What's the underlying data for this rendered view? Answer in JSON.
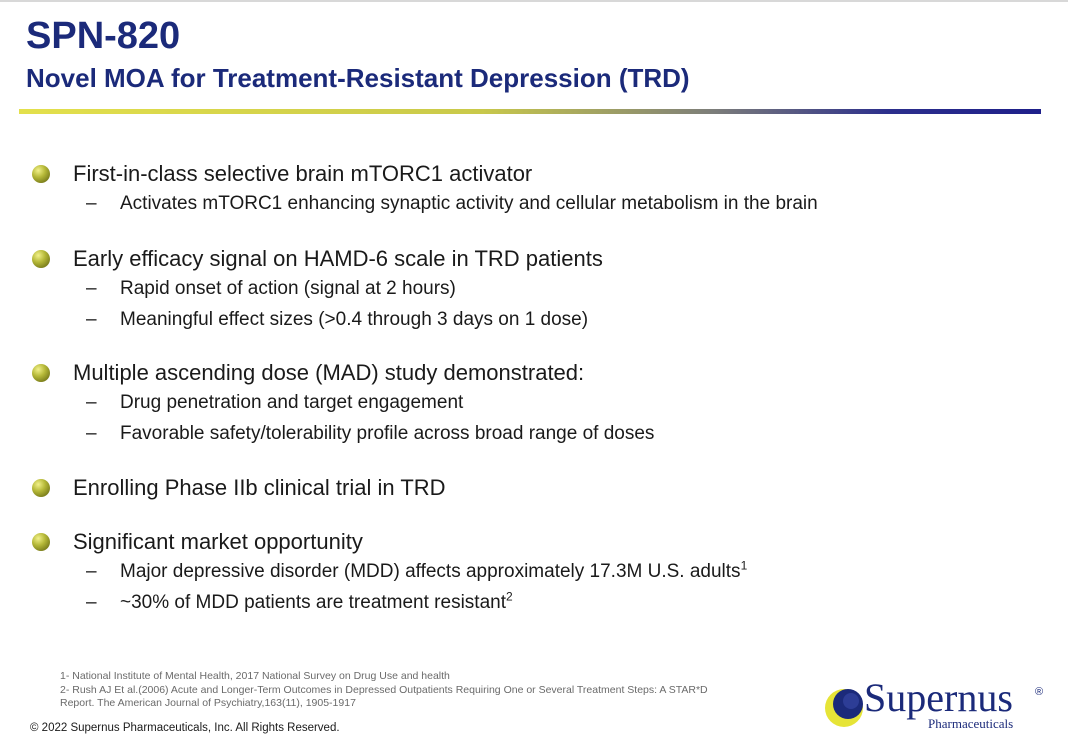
{
  "slide": {
    "title": "SPN-820",
    "subtitle": "Novel MOA for Treatment-Resistant Depression (TRD)"
  },
  "bullets": [
    {
      "text": "First-in-class selective brain mTORC1 activator",
      "subs": [
        {
          "text": "Activates mTORC1 enhancing synaptic activity and cellular metabolism in the brain",
          "sup": ""
        }
      ]
    },
    {
      "text": "Early efficacy signal on HAMD-6 scale in TRD patients",
      "subs": [
        {
          "text": "Rapid onset of action (signal at 2 hours)",
          "sup": ""
        },
        {
          "text": "Meaningful effect sizes (>0.4 through 3 days on 1 dose)",
          "sup": ""
        }
      ]
    },
    {
      "text": "Multiple ascending dose (MAD) study demonstrated:",
      "subs": [
        {
          "text": "Drug penetration and target engagement",
          "sup": ""
        },
        {
          "text": "Favorable safety/tolerability profile across broad range of doses",
          "sup": ""
        }
      ]
    },
    {
      "text": "Enrolling Phase IIb clinical trial in TRD",
      "subs": []
    },
    {
      "text": "Significant market opportunity",
      "subs": [
        {
          "text": "Major depressive disorder (MDD) affects approximately 17.3M U.S. adults",
          "sup": "1"
        },
        {
          "text": "~30% of MDD patients are treatment resistant",
          "sup": "2"
        }
      ]
    }
  ],
  "sub_bullet_marker": "–",
  "footnotes": {
    "line1": "1- National Institute of Mental Health, 2017 National Survey on Drug Use and health",
    "line2": "2- Rush AJ Et al.(2006)  Acute and Longer-Term Outcomes in Depressed Outpatients Requiring One or Several Treatment Steps: A STAR*D",
    "line3": "Report. The American Journal of Psychiatry,163(11), 1905-1917"
  },
  "copyright": "© 2022 Supernus Pharmaceuticals, Inc. All Rights Reserved.",
  "logo": {
    "wordmark": "Supernus",
    "registered": "®",
    "tagline": "Pharmaceuticals",
    "icon": "supernus-logo-icon"
  },
  "colors": {
    "title": "#1b2a7a",
    "bullet": "#9ea11f",
    "bar_start": "#e3e04c",
    "bar_end": "#1e1f8a"
  }
}
